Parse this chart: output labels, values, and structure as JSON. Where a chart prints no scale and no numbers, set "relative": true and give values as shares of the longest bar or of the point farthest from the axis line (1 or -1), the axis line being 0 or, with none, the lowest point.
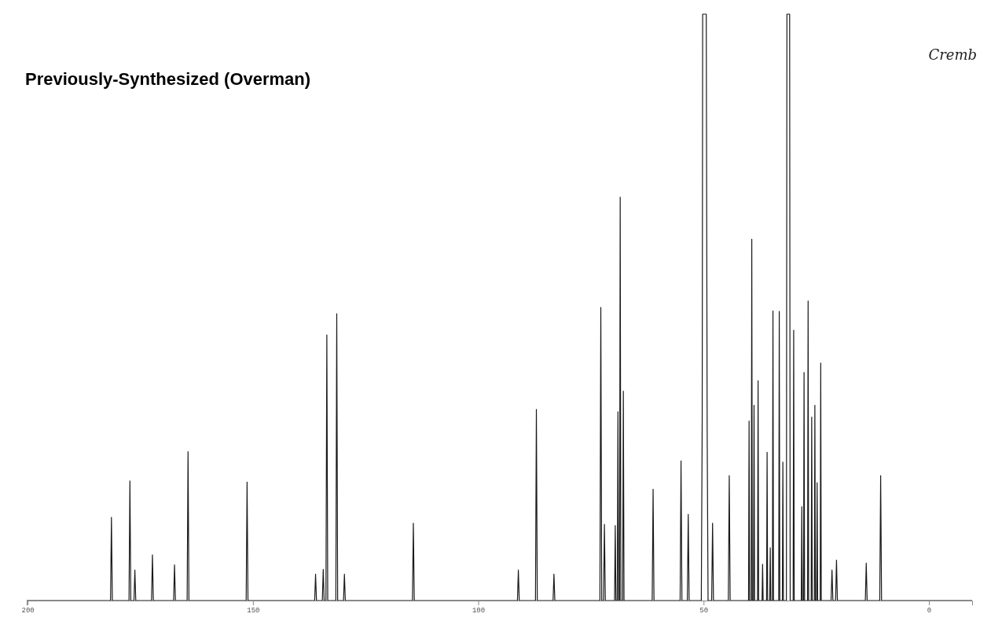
{
  "chart_data": {
    "type": "line",
    "title": "Previously-Synthesized (Overman)",
    "annotations": [
      "Cremb"
    ],
    "relative": true,
    "tick_labels": "x",
    "xlim": [
      200.2,
      -9.6
    ],
    "xticks": [
      200,
      150,
      100,
      50,
      0
    ],
    "x": [
      200.2,
      181.6,
      181.4,
      181.2,
      177.5,
      177.3,
      177.1,
      176.4,
      176.2,
      176.0,
      172.5,
      172.3,
      172.1,
      167.6,
      167.4,
      167.2,
      164.6,
      164.4,
      164.2,
      151.5,
      151.3,
      151.1,
      136.3,
      136.1,
      135.9,
      134.6,
      134.4,
      134.2,
      133.8,
      133.6,
      133.4,
      131.6,
      131.4,
      131.2,
      129.9,
      129.7,
      129.5,
      114.6,
      114.4,
      114.2,
      91.3,
      91.1,
      90.9,
      87.3,
      87.1,
      86.9,
      83.4,
      83.2,
      83.0,
      73.0,
      72.8,
      72.6,
      72.2,
      72.0,
      71.8,
      69.75,
      69.6,
      69.45,
      69.15,
      69.0,
      68.85,
      68.65,
      68.5,
      68.35,
      67.95,
      67.8,
      67.65,
      61.4,
      61.2,
      61.0,
      55.2,
      55.0,
      54.8,
      53.6,
      53.4,
      53.2,
      50.5,
      50.3,
      50.2,
      49.4,
      49.2,
      49.0,
      48.2,
      48.0,
      47.8,
      44.5,
      44.3,
      44.1,
      40.02,
      39.9,
      39.78,
      39.42,
      39.3,
      39.18,
      38.92,
      38.8,
      38.68,
      38.02,
      37.9,
      37.78,
      37.02,
      36.9,
      36.78,
      36.02,
      35.9,
      35.78,
      35.32,
      35.2,
      35.08,
      34.72,
      34.6,
      34.48,
      33.32,
      33.2,
      33.08,
      32.52,
      32.4,
      32.28,
      31.62,
      31.5,
      30.9,
      30.78,
      30.12,
      30.0,
      29.88,
      28.32,
      28.2,
      28.08,
      27.82,
      27.7,
      27.58,
      26.92,
      26.8,
      26.68,
      26.12,
      26.0,
      25.88,
      25.42,
      25.3,
      25.18,
      24.92,
      24.8,
      24.68,
      24.12,
      24.0,
      23.88,
      21.7,
      21.5,
      21.3,
      20.7,
      20.5,
      20.3,
      14.1,
      13.9,
      13.7,
      10.9,
      10.7,
      10.5,
      -9.6
    ],
    "series": [
      {
        "color": "#1a1a1a",
        "values": [
          0,
          0,
          0.142,
          0,
          0,
          0.204,
          0,
          0,
          0.052,
          0,
          0,
          0.078,
          0,
          0,
          0.061,
          0,
          0,
          0.254,
          0,
          0,
          0.202,
          0,
          0,
          0.045,
          0,
          0,
          0.053,
          0,
          0,
          0.453,
          0,
          0,
          0.489,
          0,
          0,
          0.045,
          0,
          0,
          0.132,
          0,
          0,
          0.052,
          0,
          0,
          0.326,
          0,
          0,
          0.045,
          0,
          0,
          0.5,
          0,
          0,
          0.13,
          0,
          0,
          0.128,
          0,
          0,
          0.322,
          0,
          0,
          0.688,
          0,
          0,
          0.357,
          0,
          0,
          0.19,
          0,
          0,
          0.238,
          0,
          0,
          0.147,
          0,
          0,
          0.313,
          1,
          1,
          0.292,
          0,
          0,
          0.132,
          0,
          0,
          0.213,
          0,
          0,
          0.306,
          0,
          0,
          0.616,
          0,
          0,
          0.333,
          0,
          0,
          0.375,
          0,
          0,
          0.062,
          0,
          0,
          0.253,
          0,
          0,
          0.09,
          0,
          0,
          0.494,
          0,
          0,
          0.493,
          0,
          0,
          0.236,
          0,
          0,
          1,
          1,
          0,
          0,
          0.461,
          0,
          0,
          0.16,
          0,
          0,
          0.389,
          0,
          0,
          0.511,
          0,
          0,
          0.313,
          0,
          0,
          0.333,
          0,
          0,
          0.201,
          0,
          0,
          0.405,
          0,
          0,
          0.052,
          0,
          0,
          0.069,
          0,
          0,
          0.064,
          0,
          0,
          0.213,
          0,
          0
        ]
      }
    ]
  }
}
